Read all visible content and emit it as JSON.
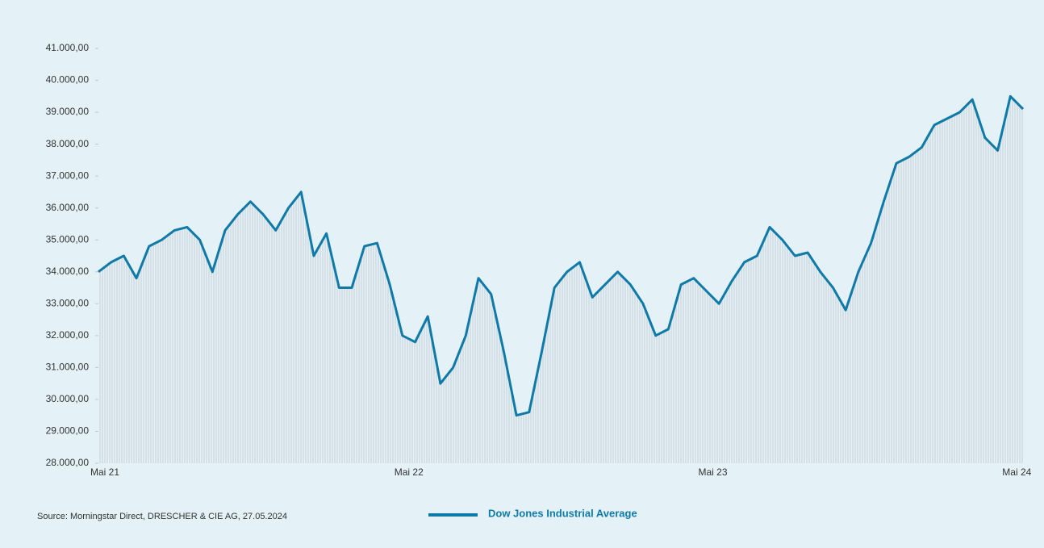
{
  "chart_data": {
    "type": "line",
    "source": "Source: Morningstar Direct, DRESCHER & CIE AG, 27.05.2024",
    "categories": [
      "Mai 21",
      null,
      null,
      null,
      null,
      null,
      null,
      null,
      null,
      null,
      null,
      null,
      null,
      null,
      null,
      null,
      null,
      null,
      null,
      null,
      null,
      null,
      null,
      null,
      "Mai 22",
      null,
      null,
      null,
      null,
      null,
      null,
      null,
      null,
      null,
      null,
      null,
      null,
      null,
      null,
      null,
      null,
      null,
      null,
      null,
      null,
      null,
      null,
      null,
      "Mai 23",
      null,
      null,
      null,
      null,
      null,
      null,
      null,
      null,
      null,
      null,
      null,
      null,
      null,
      null,
      null,
      null,
      null,
      null,
      null,
      null,
      null,
      null,
      null,
      "Mai 24",
      null
    ],
    "series": [
      {
        "name": "Dow Jones Industrial Average",
        "color": "#0f7aa8",
        "values": [
          34000,
          34300,
          34500,
          33800,
          34800,
          35000,
          35300,
          35400,
          35000,
          34000,
          35300,
          35800,
          36200,
          35800,
          35300,
          36000,
          36500,
          34500,
          35200,
          33500,
          33500,
          34800,
          34900,
          33600,
          32000,
          31800,
          32600,
          30500,
          31000,
          32000,
          33800,
          33300,
          31500,
          29500,
          29600,
          31500,
          33500,
          34000,
          34300,
          33200,
          33600,
          34000,
          33600,
          33000,
          32000,
          32200,
          33600,
          33800,
          33400,
          33000,
          33700,
          34300,
          34500,
          35400,
          35000,
          34500,
          34600,
          34000,
          33500,
          32800,
          34000,
          34900,
          36200,
          37400,
          37600,
          37900,
          38600,
          38800,
          39000,
          39400,
          38200,
          37800,
          39500,
          39100
        ]
      }
    ],
    "ylim": [
      28000,
      41000
    ],
    "yticks": [
      {
        "value": 28000,
        "label": "28.000,00"
      },
      {
        "value": 29000,
        "label": "29.000,00"
      },
      {
        "value": 30000,
        "label": "30.000,00"
      },
      {
        "value": 31000,
        "label": "31.000,00"
      },
      {
        "value": 32000,
        "label": "32.000,00"
      },
      {
        "value": 33000,
        "label": "33.000,00"
      },
      {
        "value": 34000,
        "label": "34.000,00"
      },
      {
        "value": 35000,
        "label": "35.000,00"
      },
      {
        "value": 36000,
        "label": "36.000,00"
      },
      {
        "value": 37000,
        "label": "37.000,00"
      },
      {
        "value": 38000,
        "label": "38.000,00"
      },
      {
        "value": 39000,
        "label": "39.000,00"
      },
      {
        "value": 40000,
        "label": "40.000,00"
      },
      {
        "value": 41000,
        "label": "41.000,00"
      }
    ],
    "grid": false
  }
}
